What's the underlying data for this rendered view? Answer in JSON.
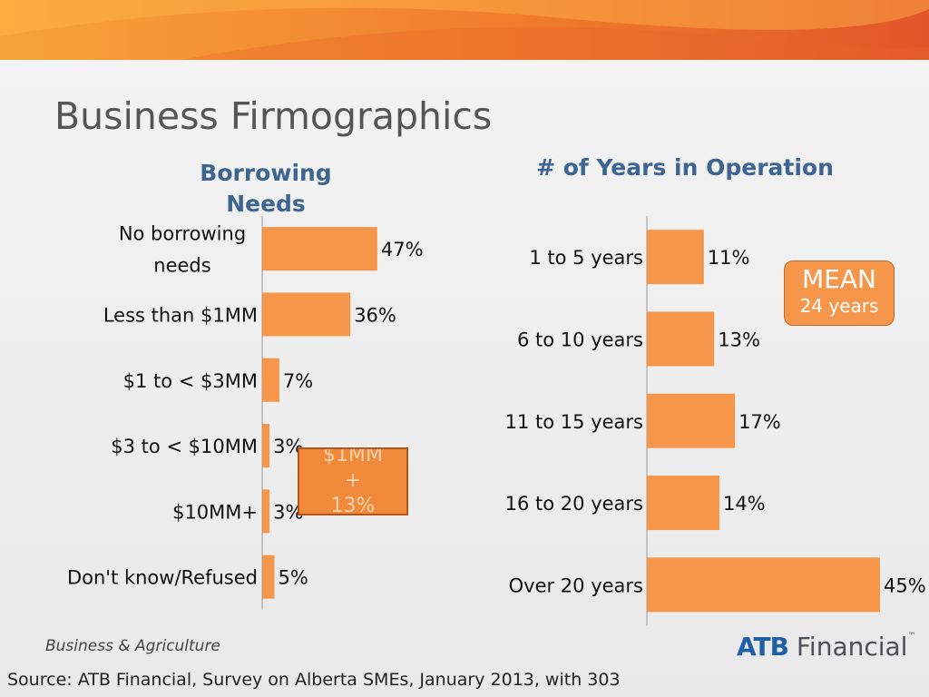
{
  "title": "Business Firmographics",
  "colors": {
    "bar": "#f5964a",
    "accent_title": "#3d6592",
    "banner_start": "#f7a33a",
    "banner_end": "#e2552a"
  },
  "chart_data": [
    {
      "type": "bar",
      "orientation": "horizontal",
      "title_lines": [
        "Borrowing",
        "Needs"
      ],
      "categories": [
        [
          "No borrowing",
          "needs"
        ],
        [
          "Less than $1MM"
        ],
        [
          "$1 to < $3MM"
        ],
        [
          "$3 to < $10MM"
        ],
        [
          "$10MM+"
        ],
        [
          "Don't know/Refused"
        ]
      ],
      "values": [
        47,
        36,
        7,
        3,
        3,
        5
      ],
      "labels": [
        "47%",
        "36%",
        "7%",
        "3%",
        "3%",
        "5%"
      ],
      "xlim": [
        0,
        100
      ],
      "grid": false,
      "callout_lines": [
        "$1MM",
        "+",
        "13%"
      ]
    },
    {
      "type": "bar",
      "orientation": "horizontal",
      "title": "# of Years in Operation",
      "categories": [
        "1 to 5 years",
        "6 to 10 years",
        "11 to 15 years",
        "16 to 20 years",
        "Over 20 years"
      ],
      "values": [
        11,
        13,
        17,
        14,
        45
      ],
      "labels": [
        "11%",
        "13%",
        "17%",
        "14%",
        "45%"
      ],
      "xlim": [
        0,
        45
      ],
      "grid": false,
      "annotation": {
        "label": "MEAN",
        "value": "24 years"
      }
    }
  ],
  "footer": {
    "tagline": "Business & Agriculture",
    "logo_brand": "ATB",
    "logo_rest": "Financial",
    "logo_tm": "™",
    "source": "Source: ATB Financial, Survey on Alberta SMEs, January 2013, with 303"
  }
}
